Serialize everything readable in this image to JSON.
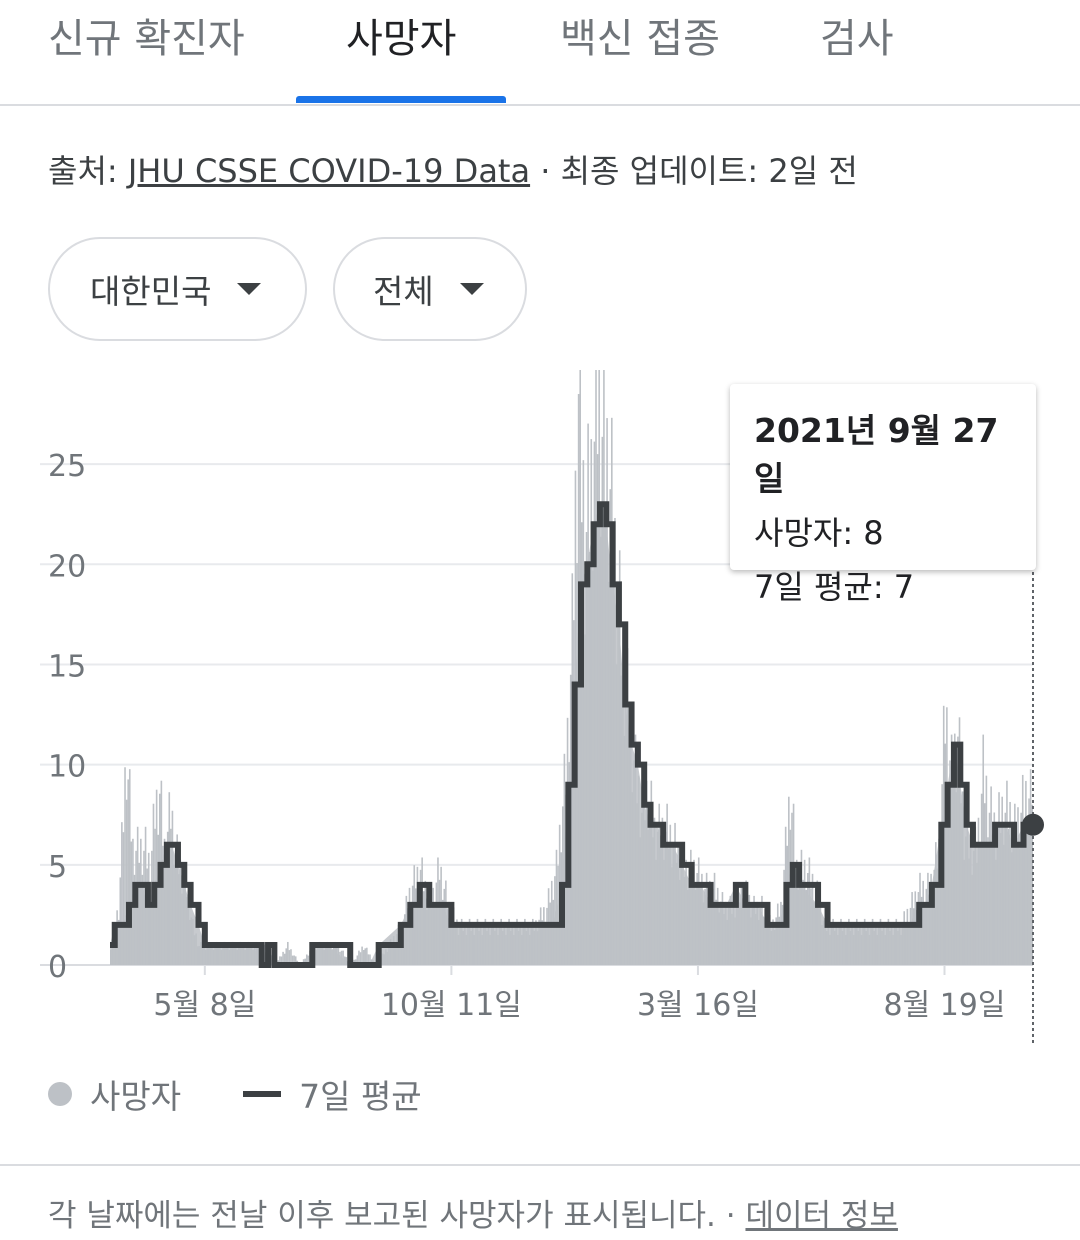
{
  "tabs": [
    {
      "label": "신규 확진자",
      "active": false
    },
    {
      "label": "사망자",
      "active": true
    },
    {
      "label": "백신 접종",
      "active": false
    },
    {
      "label": "검사",
      "active": false
    }
  ],
  "source": {
    "prefix": "출처: ",
    "link": "JHU CSSE COVID-19 Data",
    "suffix": " · 최종 업데이트: 2일 전"
  },
  "filters": {
    "region": "대한민국",
    "scope": "전체"
  },
  "tooltip": {
    "date": "2021년 9월 27일",
    "deaths": "사망자: 8",
    "avg": "7일 평균: 7"
  },
  "legend": {
    "deaths": "사망자",
    "avg": "7일 평균"
  },
  "footer": {
    "text": "각 날짜에는 전날 이후 보고된 사망자가 표시됩니다.  · ",
    "link": "데이터 정보"
  },
  "colors": {
    "accent": "#1a73e8",
    "bars": "#bdc1c6",
    "line": "#3c4043"
  },
  "chart_data": {
    "type": "bar",
    "yticks": [
      0,
      5,
      10,
      15,
      20,
      25
    ],
    "ylim": [
      0,
      29
    ],
    "xticks": [
      {
        "label": "5월 8일",
        "day": 60
      },
      {
        "label": "10월 11일",
        "day": 216
      },
      {
        "label": "3월 16일",
        "day": 372
      },
      {
        "label": "8월 19일",
        "day": 528
      }
    ],
    "series": [
      {
        "name": "사망자",
        "kind": "bar",
        "points": [
          [
            0,
            1
          ],
          [
            5,
            3
          ],
          [
            10,
            11
          ],
          [
            14,
            6
          ],
          [
            18,
            6
          ],
          [
            22,
            6
          ],
          [
            25,
            5
          ],
          [
            28,
            8
          ],
          [
            31,
            9
          ],
          [
            34,
            6
          ],
          [
            38,
            8
          ],
          [
            41,
            6
          ],
          [
            44,
            5
          ],
          [
            48,
            4
          ],
          [
            52,
            2
          ],
          [
            56,
            1
          ],
          [
            64,
            1
          ],
          [
            72,
            1
          ],
          [
            80,
            1
          ],
          [
            88,
            1
          ],
          [
            96,
            1
          ],
          [
            104,
            0
          ],
          [
            112,
            1
          ],
          [
            120,
            0
          ],
          [
            128,
            1
          ],
          [
            136,
            1
          ],
          [
            144,
            1
          ],
          [
            152,
            0
          ],
          [
            160,
            1
          ],
          [
            168,
            0
          ],
          [
            176,
            1
          ],
          [
            184,
            2
          ],
          [
            190,
            4
          ],
          [
            196,
            5
          ],
          [
            202,
            3
          ],
          [
            208,
            5
          ],
          [
            214,
            3
          ],
          [
            220,
            2
          ],
          [
            228,
            2
          ],
          [
            236,
            2
          ],
          [
            244,
            2
          ],
          [
            252,
            2
          ],
          [
            260,
            2
          ],
          [
            268,
            2
          ],
          [
            276,
            3
          ],
          [
            282,
            5
          ],
          [
            288,
            10
          ],
          [
            292,
            17
          ],
          [
            296,
            30
          ],
          [
            300,
            22
          ],
          [
            304,
            25
          ],
          [
            308,
            30
          ],
          [
            312,
            27
          ],
          [
            316,
            25
          ],
          [
            320,
            20
          ],
          [
            324,
            16
          ],
          [
            328,
            13
          ],
          [
            332,
            10
          ],
          [
            336,
            8
          ],
          [
            340,
            9
          ],
          [
            344,
            7
          ],
          [
            348,
            7
          ],
          [
            352,
            7
          ],
          [
            358,
            6
          ],
          [
            364,
            5
          ],
          [
            370,
            5
          ],
          [
            376,
            4
          ],
          [
            382,
            4
          ],
          [
            388,
            3
          ],
          [
            394,
            3
          ],
          [
            400,
            4
          ],
          [
            406,
            3
          ],
          [
            412,
            3
          ],
          [
            418,
            2
          ],
          [
            424,
            3
          ],
          [
            430,
            9
          ],
          [
            434,
            5
          ],
          [
            440,
            5
          ],
          [
            446,
            4
          ],
          [
            452,
            2
          ],
          [
            460,
            2
          ],
          [
            468,
            2
          ],
          [
            476,
            2
          ],
          [
            484,
            2
          ],
          [
            492,
            2
          ],
          [
            500,
            2
          ],
          [
            506,
            3
          ],
          [
            512,
            4
          ],
          [
            518,
            4
          ],
          [
            524,
            6
          ],
          [
            528,
            13
          ],
          [
            532,
            10
          ],
          [
            536,
            12
          ],
          [
            540,
            7
          ],
          [
            544,
            6
          ],
          [
            548,
            6
          ],
          [
            552,
            10
          ],
          [
            556,
            8
          ],
          [
            560,
            7
          ],
          [
            564,
            8
          ],
          [
            568,
            8
          ],
          [
            572,
            7
          ],
          [
            576,
            8
          ],
          [
            580,
            9
          ],
          [
            584,
            8
          ]
        ]
      },
      {
        "name": "7일 평균",
        "kind": "line",
        "points": [
          [
            0,
            1
          ],
          [
            3,
            2
          ],
          [
            8,
            2
          ],
          [
            12,
            3
          ],
          [
            16,
            4
          ],
          [
            20,
            4
          ],
          [
            24,
            3
          ],
          [
            28,
            4
          ],
          [
            32,
            5
          ],
          [
            36,
            6
          ],
          [
            39,
            6
          ],
          [
            43,
            5
          ],
          [
            47,
            4
          ],
          [
            51,
            3
          ],
          [
            56,
            2
          ],
          [
            60,
            1
          ],
          [
            70,
            1
          ],
          [
            90,
            1
          ],
          [
            96,
            0
          ],
          [
            100,
            1
          ],
          [
            104,
            0
          ],
          [
            110,
            0
          ],
          [
            126,
            0
          ],
          [
            128,
            1
          ],
          [
            138,
            1
          ],
          [
            152,
            0
          ],
          [
            164,
            0
          ],
          [
            170,
            1
          ],
          [
            184,
            2
          ],
          [
            190,
            3
          ],
          [
            196,
            4
          ],
          [
            202,
            3
          ],
          [
            210,
            3
          ],
          [
            216,
            2
          ],
          [
            230,
            2
          ],
          [
            280,
            2
          ],
          [
            286,
            4
          ],
          [
            290,
            9
          ],
          [
            294,
            14
          ],
          [
            298,
            19
          ],
          [
            302,
            20
          ],
          [
            306,
            22
          ],
          [
            310,
            23
          ],
          [
            314,
            22
          ],
          [
            318,
            19
          ],
          [
            322,
            17
          ],
          [
            326,
            13
          ],
          [
            330,
            11
          ],
          [
            334,
            10
          ],
          [
            338,
            8
          ],
          [
            342,
            7
          ],
          [
            346,
            7
          ],
          [
            350,
            6
          ],
          [
            356,
            6
          ],
          [
            362,
            5
          ],
          [
            368,
            4
          ],
          [
            374,
            4
          ],
          [
            380,
            3
          ],
          [
            390,
            3
          ],
          [
            396,
            4
          ],
          [
            402,
            3
          ],
          [
            410,
            3
          ],
          [
            416,
            2
          ],
          [
            424,
            2
          ],
          [
            428,
            4
          ],
          [
            432,
            5
          ],
          [
            436,
            4
          ],
          [
            448,
            3
          ],
          [
            454,
            2
          ],
          [
            506,
            2
          ],
          [
            512,
            3
          ],
          [
            516,
            3
          ],
          [
            520,
            4
          ],
          [
            526,
            7
          ],
          [
            530,
            9
          ],
          [
            534,
            11
          ],
          [
            538,
            9
          ],
          [
            542,
            7
          ],
          [
            546,
            6
          ],
          [
            556,
            6
          ],
          [
            560,
            7
          ],
          [
            566,
            7
          ],
          [
            572,
            6
          ],
          [
            578,
            7
          ],
          [
            584,
            7
          ]
        ]
      }
    ],
    "xlim": [
      0,
      584
    ],
    "highlight": {
      "day": 584,
      "value": 7
    }
  }
}
